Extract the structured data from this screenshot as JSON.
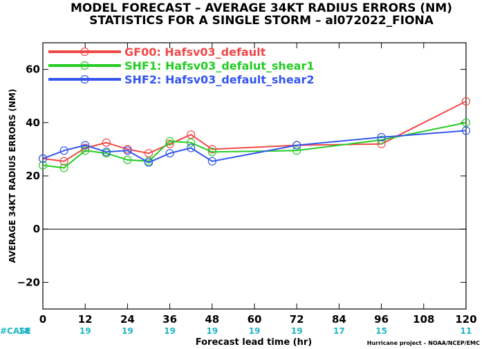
{
  "chart_data": {
    "type": "line",
    "title": "MODEL FORECAST – AVERAGE 34KT RADIUS ERRORS (NM)",
    "subtitle": "STATISTICS FOR A SINGLE STORM – al072022_FIONA",
    "xlabel": "Forecast lead time (hr)",
    "ylabel": "AVERAGE 34KT RADIUS ERRORS (NM)",
    "xlim": [
      0,
      120
    ],
    "ylim": [
      -30,
      70
    ],
    "x_ticks": [
      0,
      12,
      24,
      36,
      48,
      60,
      72,
      84,
      96,
      108,
      120
    ],
    "y_ticks": [
      -20,
      0,
      20,
      40,
      60
    ],
    "zero_line": true,
    "legend_position": "top-left",
    "series": [
      {
        "name": "GF00: Hafsv03_default",
        "color": "#f04848",
        "x": [
          0,
          6,
          12,
          18,
          24,
          30,
          36,
          42,
          48,
          72,
          96,
          120
        ],
        "values": [
          26.5,
          25.5,
          30.5,
          32.5,
          30,
          28.5,
          32,
          35.5,
          30,
          31.5,
          32,
          48
        ]
      },
      {
        "name": "SHF1: Hafsv03_defalut_shear1",
        "color": "#22cc22",
        "x": [
          0,
          6,
          12,
          18,
          24,
          30,
          36,
          42,
          48,
          72,
          96,
          120
        ],
        "values": [
          24,
          23,
          29.5,
          28.5,
          26,
          25.5,
          33,
          32.5,
          29,
          29.5,
          33.5,
          40
        ]
      },
      {
        "name": "SHF2: Hafsv03_default_shear2",
        "color": "#3355ee",
        "x": [
          0,
          6,
          12,
          18,
          24,
          30,
          36,
          42,
          48,
          72,
          96,
          120
        ],
        "values": [
          26.5,
          29.5,
          31.5,
          29,
          29.5,
          25,
          28.5,
          30.5,
          25.5,
          31.5,
          34.5,
          37
        ]
      }
    ],
    "case_label": "#CASE",
    "case_color": "#1fb5c8",
    "cases": [
      {
        "x": 0,
        "n": "18"
      },
      {
        "x": 12,
        "n": "19"
      },
      {
        "x": 24,
        "n": "19"
      },
      {
        "x": 36,
        "n": "19"
      },
      {
        "x": 48,
        "n": "19"
      },
      {
        "x": 60,
        "n": "19"
      },
      {
        "x": 72,
        "n": "19"
      },
      {
        "x": 84,
        "n": "17"
      },
      {
        "x": 96,
        "n": "15"
      },
      {
        "x": 120,
        "n": "11"
      }
    ],
    "credit": "Hurricane project – NOAA/NCEP/EMC"
  }
}
